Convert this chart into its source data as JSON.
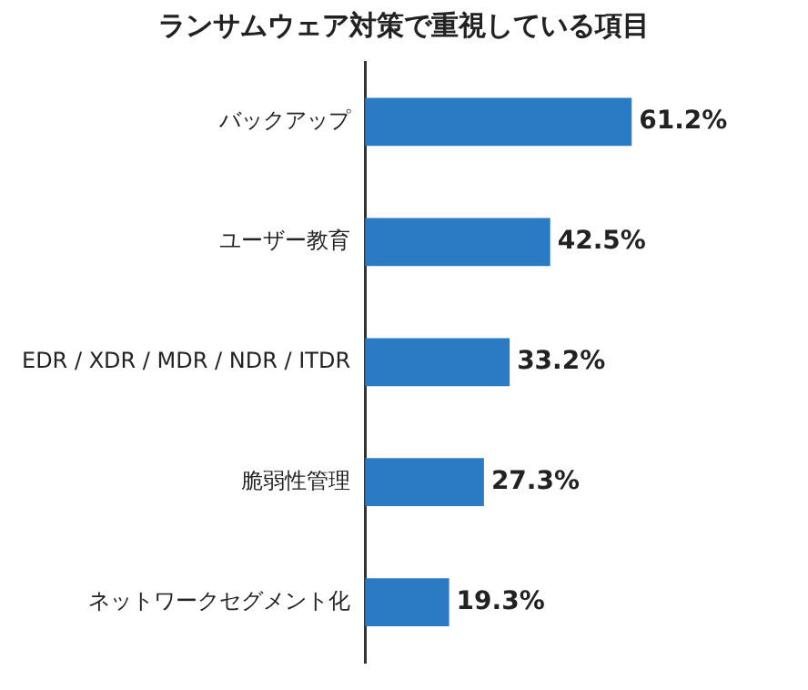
{
  "chart_data": {
    "type": "bar",
    "orientation": "horizontal",
    "title": "ランサムウェア対策で重視している項目",
    "categories": [
      "バックアップ",
      "ユーザー教育",
      "EDR / XDR / MDR / NDR / ITDR",
      "脆弱性管理",
      "ネットワークセグメント化"
    ],
    "values": [
      61.2,
      42.5,
      33.2,
      27.3,
      19.3
    ],
    "value_labels": [
      "61.2%",
      "42.5%",
      "33.2%",
      "27.3%",
      "19.3%"
    ],
    "color": "#2a7bc4"
  }
}
